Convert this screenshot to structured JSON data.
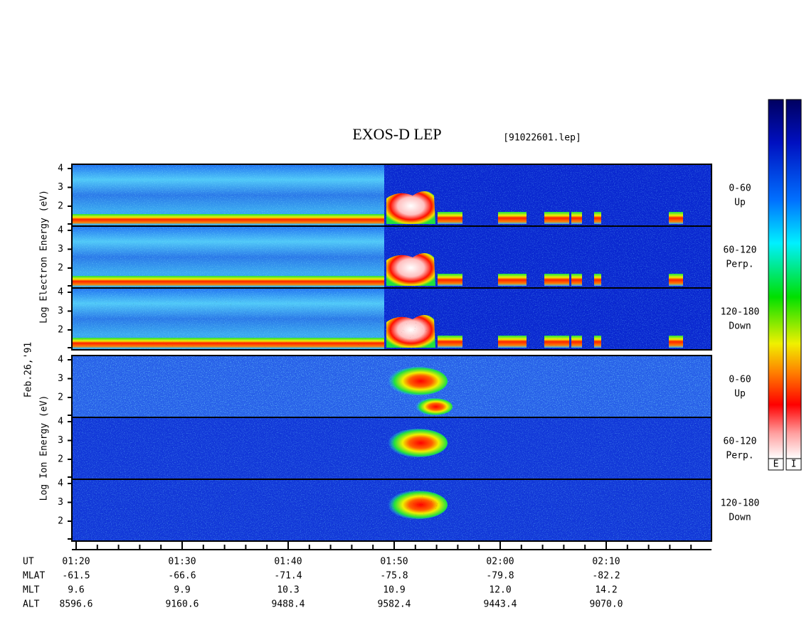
{
  "title": "EXOS-D LEP",
  "file": "[91022601.lep]",
  "date": "Feb.26,'91",
  "groups": [
    {
      "ylabel": "Log Electron Energy (eV)",
      "panels": [
        {
          "angle": "0-60",
          "direction": "Up"
        },
        {
          "angle": "60-120",
          "direction": "Perp."
        },
        {
          "angle": "120-180",
          "direction": "Down"
        }
      ]
    },
    {
      "ylabel": "Log Ion Energy (eV)",
      "panels": [
        {
          "angle": "0-60",
          "direction": "Up"
        },
        {
          "angle": "60-120",
          "direction": "Perp."
        },
        {
          "angle": "120-180",
          "direction": "Down"
        }
      ]
    }
  ],
  "yticks": [
    4,
    3,
    2
  ],
  "time_axis": {
    "rows": [
      {
        "label": "UT",
        "values": [
          "01:20",
          "01:30",
          "01:40",
          "01:50",
          "02:00",
          "02:10"
        ]
      },
      {
        "label": "MLAT",
        "values": [
          "-61.5",
          "-66.6",
          "-71.4",
          "-75.8",
          "-79.8",
          "-82.2"
        ]
      },
      {
        "label": "MLT",
        "values": [
          "9.6",
          "9.9",
          "10.3",
          "10.9",
          "12.0",
          "14.2"
        ]
      },
      {
        "label": "ALT",
        "values": [
          "8596.6",
          "9160.6",
          "9488.4",
          "9582.4",
          "9443.4",
          "9070.0"
        ]
      }
    ]
  },
  "colorbars": [
    "E",
    "I"
  ]
}
